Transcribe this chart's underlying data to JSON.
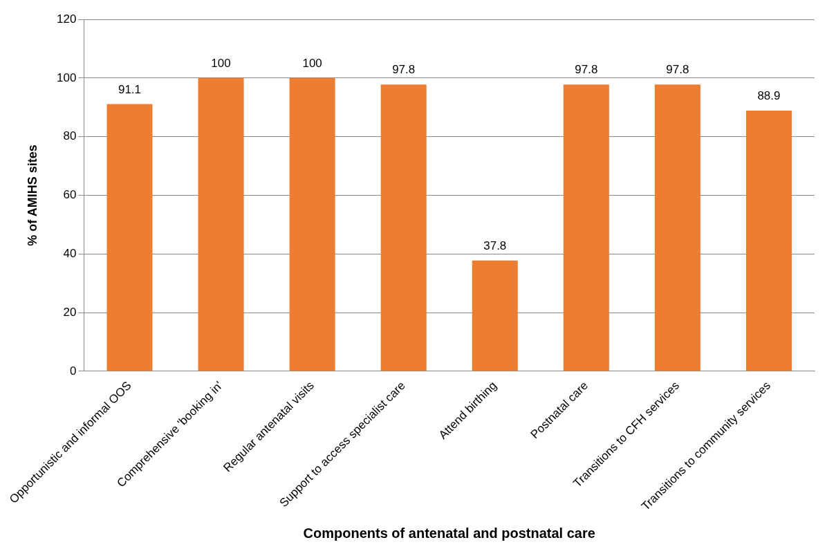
{
  "chart_data": {
    "type": "bar",
    "xlabel": "Components of antenatal and postnatal care",
    "ylabel": "% of AMIHS sites",
    "categories": [
      "Opportunistic and informal OOS",
      "Comprehensive 'booking in'",
      "Regular antenatal visits",
      "Support to access specialist care",
      "Attend birthing",
      "Postnatal care",
      "Transitions to CFH services",
      "Transitions to community services"
    ],
    "values": [
      91.1,
      100,
      100,
      97.8,
      37.8,
      97.8,
      97.8,
      88.9
    ],
    "color": "#ed7d31",
    "ylim": [
      0,
      120
    ],
    "yticks": [
      0,
      20,
      40,
      60,
      80,
      100,
      120
    ],
    "grid": "y",
    "legend": false,
    "data_labels": true
  }
}
